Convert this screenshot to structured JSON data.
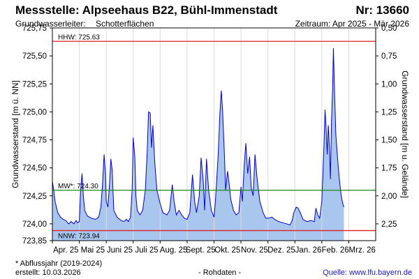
{
  "header": {
    "title": "Messstelle: Alpseehaus B22, Bühl-Immenstadt",
    "number": "Nr: 13660",
    "aquifer_label": "Grundwasserleiter:",
    "aquifer_value": "Schotterflächen",
    "period": "Zeitraum: Apr 2025 - Mär 2026"
  },
  "footer": {
    "note": "* Abflussjahr (2019-2024)",
    "created": "erstellt:  10.03.2026",
    "data_kind": "- Rohdaten -",
    "source": "Quelle: www.lfu.bayern.de"
  },
  "chart_data": {
    "type": "area",
    "ylabel": "Grundwasserstand [m ü. NN]",
    "ylabel_right": "Grundwasserstand [m u. Gelände]",
    "ylim": [
      723.85,
      725.75
    ],
    "y_ticks": [
      "723,85",
      "724,00",
      "724,25",
      "724,50",
      "724,75",
      "725,00",
      "725,25",
      "725,50",
      "725,75"
    ],
    "y_ticks_right": [
      "2,25",
      "2,00",
      "1,75",
      "1,50",
      "1,25",
      "1,00",
      "0,75",
      "0,50"
    ],
    "x_ticks": [
      "Apr. 25",
      "Mai 25",
      "Juni 25",
      "Juli 25",
      "Aug. 25",
      "Sept. 25",
      "Okt. 25",
      "Nov. 25",
      "Dez. 25",
      "Jan. 26",
      "Feb. 26",
      "Mrz. 26"
    ],
    "reference_lines": [
      {
        "label": "HHW: 725.63",
        "value": 725.63,
        "color": "#e02020"
      },
      {
        "label": "MW*: 724.30",
        "value": 724.3,
        "color": "#168a16"
      },
      {
        "label": "NNW: 723.94",
        "value": 723.94,
        "color": "#e02020"
      }
    ],
    "fill_color": "#a9c6ee",
    "line_color": "#0000cc",
    "x_unit": "month index (0 = 1 Apr 2025)",
    "series": [
      {
        "values": [
          [
            0.0,
            724.38
          ],
          [
            0.05,
            724.3
          ],
          [
            0.1,
            724.2
          ],
          [
            0.2,
            724.1
          ],
          [
            0.3,
            724.06
          ],
          [
            0.4,
            724.04
          ],
          [
            0.5,
            724.03
          ],
          [
            0.6,
            724.0
          ],
          [
            0.7,
            724.02
          ],
          [
            0.8,
            724.0
          ],
          [
            0.88,
            724.03
          ],
          [
            0.93,
            724.01
          ],
          [
            1.0,
            724.02
          ],
          [
            1.05,
            724.3
          ],
          [
            1.1,
            724.45
          ],
          [
            1.15,
            724.25
          ],
          [
            1.2,
            724.12
          ],
          [
            1.3,
            724.07
          ],
          [
            1.45,
            724.05
          ],
          [
            1.6,
            724.04
          ],
          [
            1.72,
            724.06
          ],
          [
            1.8,
            724.15
          ],
          [
            1.86,
            724.35
          ],
          [
            1.92,
            724.62
          ],
          [
            1.97,
            724.45
          ],
          [
            2.0,
            724.2
          ],
          [
            2.06,
            724.15
          ],
          [
            2.12,
            724.35
          ],
          [
            2.17,
            724.58
          ],
          [
            2.22,
            724.48
          ],
          [
            2.28,
            724.12
          ],
          [
            2.4,
            724.06
          ],
          [
            2.55,
            724.03
          ],
          [
            2.65,
            724.02
          ],
          [
            2.75,
            724.04
          ],
          [
            2.82,
            724.02
          ],
          [
            2.9,
            724.06
          ],
          [
            2.96,
            724.3
          ],
          [
            3.0,
            724.77
          ],
          [
            3.06,
            724.6
          ],
          [
            3.1,
            724.25
          ],
          [
            3.15,
            724.12
          ],
          [
            3.25,
            724.08
          ],
          [
            3.35,
            724.12
          ],
          [
            3.45,
            724.3
          ],
          [
            3.52,
            724.65
          ],
          [
            3.57,
            725.0
          ],
          [
            3.63,
            724.99
          ],
          [
            3.68,
            724.68
          ],
          [
            3.73,
            724.88
          ],
          [
            3.8,
            724.55
          ],
          [
            3.88,
            724.3
          ],
          [
            4.0,
            724.18
          ],
          [
            4.1,
            724.1
          ],
          [
            4.25,
            724.08
          ],
          [
            4.35,
            724.12
          ],
          [
            4.45,
            724.35
          ],
          [
            4.52,
            724.2
          ],
          [
            4.6,
            724.08
          ],
          [
            4.7,
            724.12
          ],
          [
            4.8,
            724.08
          ],
          [
            4.9,
            724.05
          ],
          [
            5.0,
            724.04
          ],
          [
            5.1,
            724.1
          ],
          [
            5.2,
            724.44
          ],
          [
            5.28,
            724.2
          ],
          [
            5.35,
            724.1
          ],
          [
            5.45,
            724.25
          ],
          [
            5.52,
            724.59
          ],
          [
            5.6,
            724.38
          ],
          [
            5.65,
            724.12
          ],
          [
            5.72,
            724.58
          ],
          [
            5.8,
            724.3
          ],
          [
            5.9,
            724.12
          ],
          [
            6.0,
            724.06
          ],
          [
            6.05,
            724.2
          ],
          [
            6.15,
            724.6
          ],
          [
            6.22,
            725.0
          ],
          [
            6.27,
            725.19
          ],
          [
            6.32,
            725.0
          ],
          [
            6.38,
            724.65
          ],
          [
            6.43,
            724.3
          ],
          [
            6.5,
            724.47
          ],
          [
            6.55,
            724.38
          ],
          [
            6.62,
            724.22
          ],
          [
            6.72,
            724.12
          ],
          [
            6.82,
            724.08
          ],
          [
            6.92,
            724.1
          ],
          [
            7.0,
            724.33
          ],
          [
            7.05,
            724.2
          ],
          [
            7.12,
            724.52
          ],
          [
            7.18,
            724.72
          ],
          [
            7.25,
            724.45
          ],
          [
            7.32,
            724.6
          ],
          [
            7.38,
            724.32
          ],
          [
            7.45,
            724.25
          ],
          [
            7.52,
            724.62
          ],
          [
            7.6,
            724.4
          ],
          [
            7.7,
            724.2
          ],
          [
            7.82,
            724.1
          ],
          [
            7.92,
            724.05
          ],
          [
            8.0,
            724.05
          ],
          [
            8.15,
            724.06
          ],
          [
            8.25,
            724.04
          ],
          [
            8.4,
            724.02
          ],
          [
            8.55,
            724.01
          ],
          [
            8.7,
            724.0
          ],
          [
            8.82,
            723.99
          ],
          [
            8.9,
            724.03
          ],
          [
            8.96,
            724.1
          ],
          [
            9.0,
            724.12
          ],
          [
            9.05,
            724.15
          ],
          [
            9.12,
            724.14
          ],
          [
            9.2,
            724.1
          ],
          [
            9.3,
            724.04
          ],
          [
            9.45,
            724.02
          ],
          [
            9.6,
            724.03
          ],
          [
            9.72,
            724.02
          ],
          [
            9.78,
            724.14
          ],
          [
            9.85,
            724.08
          ],
          [
            9.92,
            724.05
          ],
          [
            10.0,
            724.2
          ],
          [
            10.08,
            724.7
          ],
          [
            10.12,
            725.02
          ],
          [
            10.16,
            724.85
          ],
          [
            10.2,
            724.62
          ],
          [
            10.24,
            724.88
          ],
          [
            10.28,
            724.7
          ],
          [
            10.32,
            724.4
          ],
          [
            10.36,
            724.92
          ],
          [
            10.4,
            725.2
          ],
          [
            10.43,
            725.57
          ],
          [
            10.47,
            725.2
          ],
          [
            10.52,
            724.8
          ],
          [
            10.58,
            724.6
          ],
          [
            10.65,
            724.4
          ],
          [
            10.72,
            724.25
          ],
          [
            10.78,
            724.18
          ],
          [
            10.82,
            724.15
          ]
        ]
      }
    ]
  }
}
